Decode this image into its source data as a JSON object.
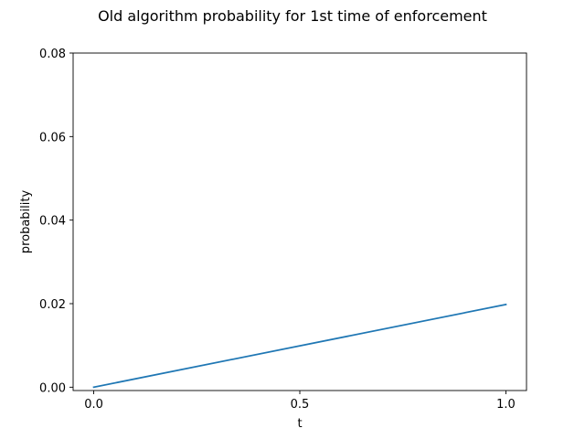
{
  "chart_data": {
    "type": "line",
    "title": "Old algorithm probability for 1st time of enforcement",
    "xlabel": "t",
    "ylabel": "probability",
    "xlim": [
      -0.05,
      1.05
    ],
    "ylim": [
      -0.0008,
      0.08
    ],
    "xticks": [
      0.0,
      0.5,
      1.0
    ],
    "xtick_labels": [
      "0.0",
      "0.5",
      "1.0"
    ],
    "yticks": [
      0.0,
      0.02,
      0.04,
      0.06,
      0.08
    ],
    "ytick_labels": [
      "0.00",
      "0.02",
      "0.04",
      "0.06",
      "0.08"
    ],
    "grid": false,
    "series": [
      {
        "color": "#1f77b4",
        "x": [
          0.0,
          1.0
        ],
        "y": [
          0.0,
          0.0198
        ]
      }
    ]
  }
}
